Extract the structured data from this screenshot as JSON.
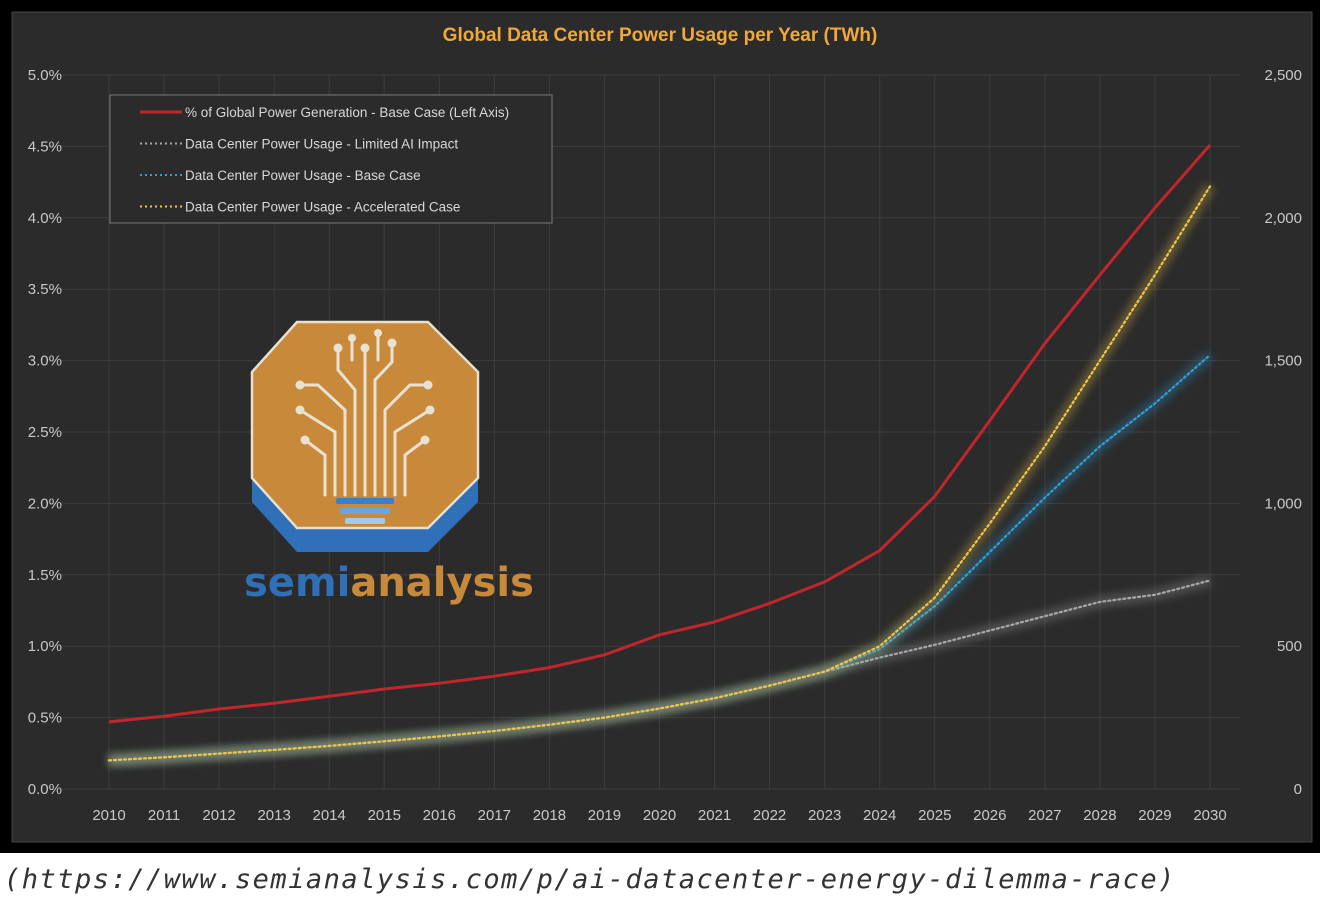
{
  "chart_data": {
    "type": "line",
    "title": "Global Data Center Power Usage per Year (TWh)",
    "x": [
      "2010",
      "2011",
      "2012",
      "2013",
      "2014",
      "2015",
      "2016",
      "2017",
      "2018",
      "2019",
      "2020",
      "2021",
      "2022",
      "2023",
      "2024",
      "2025",
      "2026",
      "2027",
      "2028",
      "2029",
      "2030"
    ],
    "y_left": {
      "ticks": [
        "0.0%",
        "0.5%",
        "1.0%",
        "1.5%",
        "2.0%",
        "2.5%",
        "3.0%",
        "3.5%",
        "4.0%",
        "4.5%",
        "5.0%"
      ],
      "range": [
        0,
        5.0
      ],
      "unit": "%"
    },
    "y_right": {
      "ticks": [
        "0",
        "500",
        "1,000",
        "1,500",
        "2,000",
        "2,500"
      ],
      "range": [
        0,
        2500
      ]
    },
    "grid": true,
    "legend_position": "top-left",
    "series": [
      {
        "name": "% of Global Power Generation - Base Case (Left Axis)",
        "axis": "left",
        "color": "#c0262b",
        "style": "solid",
        "values": [
          0.47,
          0.51,
          0.56,
          0.6,
          0.65,
          0.7,
          0.74,
          0.79,
          0.85,
          0.94,
          1.08,
          1.17,
          1.3,
          1.45,
          1.67,
          2.05,
          2.58,
          3.12,
          3.6,
          4.07,
          4.51
        ]
      },
      {
        "name": "Data Center Power Usage - Limited AI Impact",
        "axis": "right",
        "color": "#a8a8a8",
        "style": "dotted",
        "values": [
          100,
          111,
          124,
          137,
          151,
          167,
          184,
          203,
          225,
          250,
          282,
          318,
          362,
          411,
          460,
          505,
          555,
          605,
          655,
          680,
          730
        ]
      },
      {
        "name": "Data Center Power Usage - Base Case",
        "axis": "right",
        "color": "#2e9fd8",
        "style": "dotted",
        "values": [
          100,
          111,
          124,
          137,
          151,
          167,
          184,
          203,
          225,
          250,
          282,
          318,
          362,
          411,
          490,
          640,
          830,
          1020,
          1200,
          1350,
          1520
        ]
      },
      {
        "name": "Data Center Power Usage - Accelerated Case",
        "axis": "right",
        "color": "#f0c44a",
        "style": "dotted",
        "values": [
          100,
          111,
          124,
          137,
          151,
          167,
          184,
          203,
          225,
          250,
          282,
          318,
          362,
          411,
          500,
          670,
          930,
          1200,
          1500,
          1800,
          2110
        ]
      }
    ]
  },
  "logo": {
    "wordmark_part1": "semi",
    "wordmark_part2": "analysis",
    "primary_color": "#c8893a",
    "secondary_color": "#2f6fb3"
  },
  "caption": "(https://www.semianalysis.com/p/ai-datacenter-energy-dilemma-race)"
}
